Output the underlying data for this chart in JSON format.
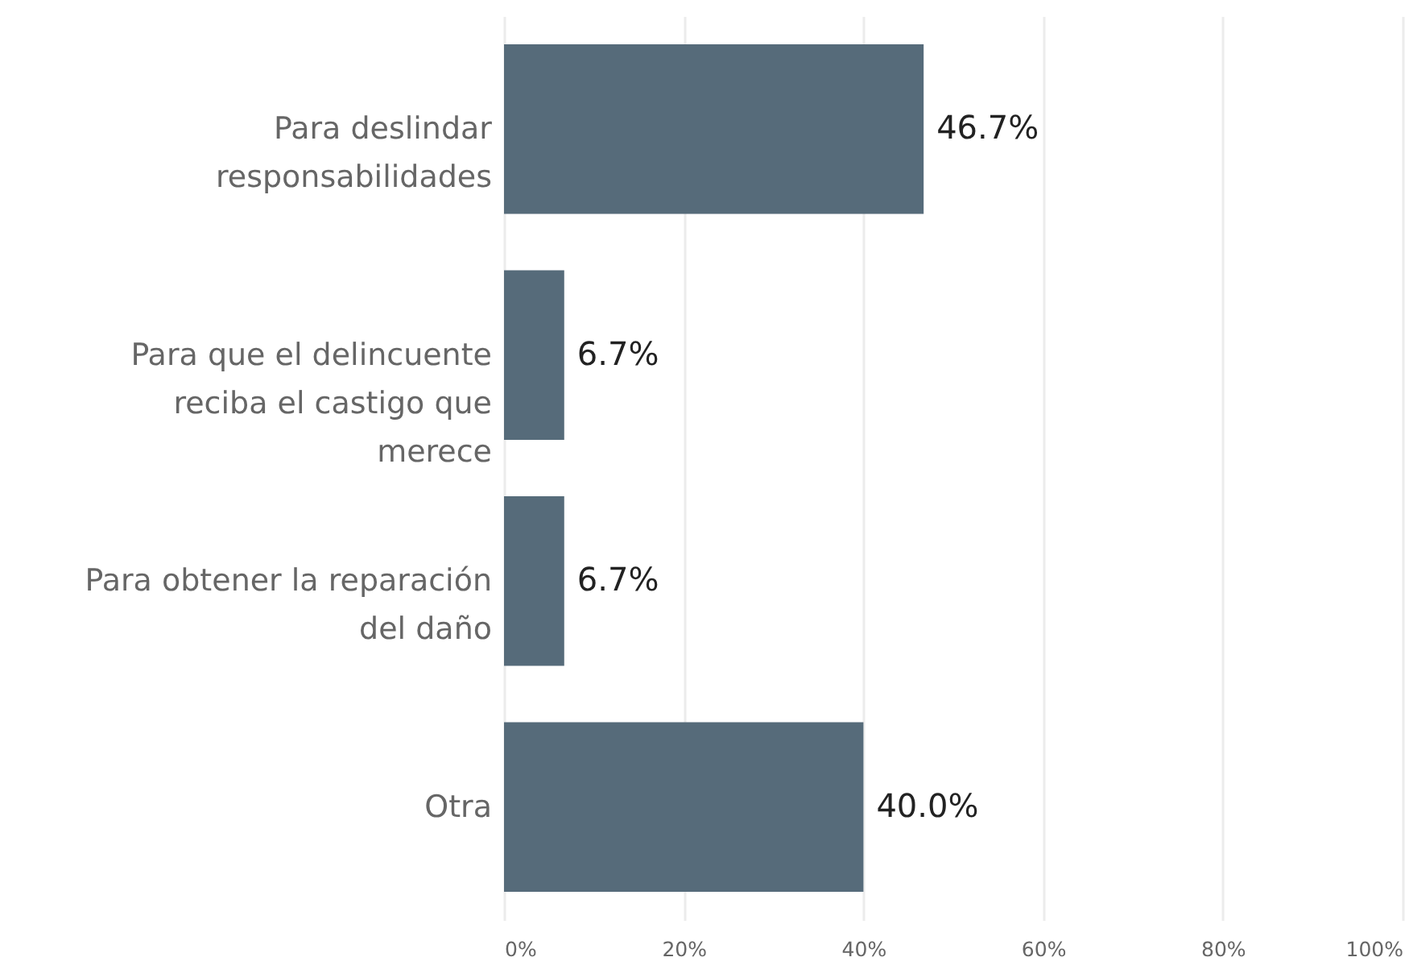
{
  "chart_data": {
    "type": "bar",
    "orientation": "horizontal",
    "categories": [
      "Para deslindar responsabilidades",
      "Para que el delincuente reciba el castigo que merece",
      "Para obtener la reparación del daño",
      "Otra"
    ],
    "values": [
      46.7,
      6.7,
      6.7,
      40.0
    ],
    "value_labels": [
      "46.7%",
      "6.7%",
      "6.7%",
      "40.0%"
    ],
    "color": "#566b7a",
    "xlim": [
      0,
      100
    ],
    "xticks": [
      {
        "value": 0,
        "label": "0%"
      },
      {
        "value": 20,
        "label": "20%"
      },
      {
        "value": 40,
        "label": "40%"
      },
      {
        "value": 60,
        "label": "60%"
      },
      {
        "value": 80,
        "label": "80%"
      },
      {
        "value": 100,
        "label": "100%"
      }
    ],
    "grid": "x"
  }
}
